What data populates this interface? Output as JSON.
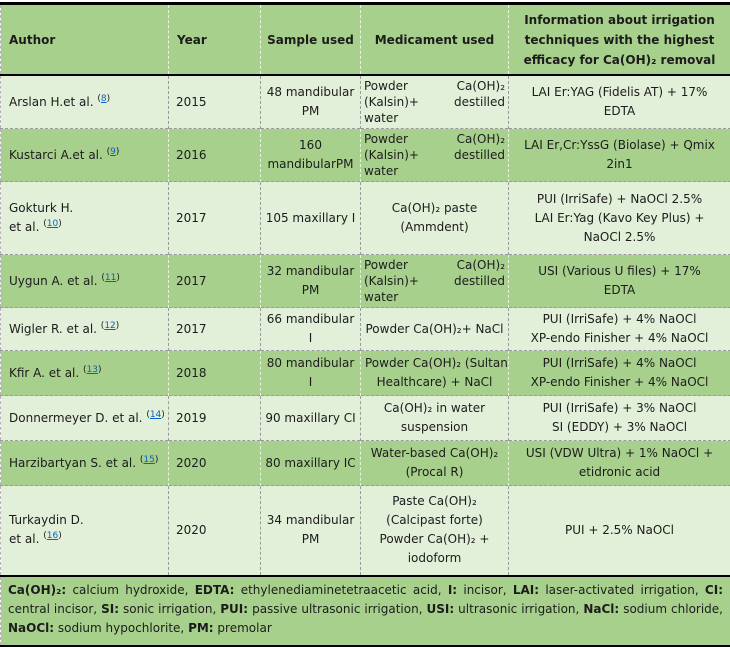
{
  "table": {
    "headers": [
      "Author",
      "Year",
      "Sample used",
      "Medicament used",
      "Information about irrigation techniques with the highest efficacy for Ca(OH)₂ removal"
    ],
    "rows": [
      {
        "shade": "light",
        "author_lines": [
          "Arslan H.et al."
        ],
        "ref": "8",
        "year": "2015",
        "sample_lines": [
          "48 mandibular",
          "PM"
        ],
        "medicament": {
          "align": "justify",
          "lines": [
            [
              "Powder",
              "Ca(OH)₂"
            ],
            [
              "(Kalsin)+",
              "destilled"
            ],
            [
              "water"
            ]
          ]
        },
        "info_lines": [
          "LAI Er:YAG (Fidelis AT) + 17%",
          "EDTA"
        ]
      },
      {
        "shade": "dark",
        "author_lines": [
          "Kustarci A.et al."
        ],
        "ref": "9",
        "year": "2016",
        "sample_lines": [
          "160",
          "mandibularPM"
        ],
        "medicament": {
          "align": "justify",
          "lines": [
            [
              "Powder",
              "Ca(OH)₂"
            ],
            [
              "(Kalsin)+",
              "destilled"
            ],
            [
              "water"
            ]
          ]
        },
        "info_lines": [
          "LAI Er,Cr:YssG (Biolase) + Qmix",
          "2in1"
        ]
      },
      {
        "shade": "light",
        "author_lines": [
          "Gokturk H.",
          "et al."
        ],
        "ref": "10",
        "year": "2017",
        "sample_lines": [
          "105 maxillary I"
        ],
        "medicament": {
          "align": "center",
          "lines": [
            "Ca(OH)₂ paste",
            "(Ammdent)"
          ]
        },
        "info_lines": [
          "PUI (IrriSafe) + NaOCl 2.5%",
          "LAI Er:Yag (Kavo Key Plus) +",
          "NaOCl 2.5%"
        ]
      },
      {
        "shade": "dark",
        "author_lines": [
          "Uygun A. et al."
        ],
        "ref": "11",
        "year": "2017",
        "sample_lines": [
          "32 mandibular",
          "PM"
        ],
        "medicament": {
          "align": "justify",
          "lines": [
            [
              "Powder",
              "Ca(OH)₂"
            ],
            [
              "(Kalsin)+",
              "destilled"
            ],
            [
              "water"
            ]
          ]
        },
        "info_lines": [
          "USI (Various U files) + 17%",
          "EDTA"
        ]
      },
      {
        "shade": "light",
        "author_lines": [
          "Wigler R. et al."
        ],
        "ref": "12",
        "year": "2017",
        "sample_lines": [
          "66 mandibular",
          "I"
        ],
        "medicament": {
          "align": "center",
          "lines": [
            "Powder Ca(OH)₂+ NaCl"
          ]
        },
        "info_lines": [
          "PUI (IrriSafe) + 4% NaOCl",
          "XP-endo Finisher + 4% NaOCl"
        ]
      },
      {
        "shade": "dark",
        "author_lines": [
          "Kfir A. et al."
        ],
        "ref": "13",
        "year": "2018",
        "sample_lines": [
          "80 mandibular",
          "I"
        ],
        "medicament": {
          "align": "center",
          "lines": [
            "Powder Ca(OH)₂ (Sultan",
            "Healthcare) + NaCl"
          ]
        },
        "info_lines": [
          "PUI (IrriSafe) + 4% NaOCl",
          "XP-endo Finisher + 4% NaOCl"
        ]
      },
      {
        "shade": "light",
        "author_lines": [
          "Donnermeyer D. et al."
        ],
        "ref": "14",
        "year": "2019",
        "sample_lines": [
          "90 maxillary CI"
        ],
        "medicament": {
          "align": "center",
          "lines": [
            "Ca(OH)₂ in water",
            "suspension"
          ]
        },
        "info_lines": [
          "PUI (IrriSafe) + 3% NaOCl",
          "SI (EDDY) + 3% NaOCl"
        ]
      },
      {
        "shade": "dark",
        "author_lines": [
          "Harzibartyan S. et al."
        ],
        "ref": "15",
        "year": "2020",
        "sample_lines": [
          "80 maxillary IC"
        ],
        "medicament": {
          "align": "center",
          "lines": [
            "Water-based Ca(OH)₂",
            "(Procal R)"
          ]
        },
        "info_lines": [
          "USI (VDW Ultra) + 1% NaOCl +",
          "etidronic acid"
        ]
      },
      {
        "shade": "light",
        "author_lines": [
          "Turkaydin D.",
          "et al."
        ],
        "ref": "16",
        "year": "2020",
        "sample_lines": [
          "34 mandibular",
          "PM"
        ],
        "medicament": {
          "align": "center",
          "lines": [
            "Paste Ca(OH)₂",
            "(Calcipast forte)",
            "Powder Ca(OH)₂ +",
            "iodoform"
          ]
        },
        "info_lines": [
          "PUI + 2.5% NaOCl"
        ]
      }
    ],
    "footnote": [
      {
        "term": "Ca(OH)₂",
        "desc": "calcium hydroxide"
      },
      {
        "term": "EDTA",
        "desc": "ethylenediaminetetraacetic acid"
      },
      {
        "term": "I",
        "desc": "incisor"
      },
      {
        "term": "LAI",
        "desc": "laser-activated irrigation"
      },
      {
        "term": "CI",
        "desc": "central incisor"
      },
      {
        "term": "SI",
        "desc": "sonic irrigation"
      },
      {
        "term": "PUI",
        "desc": "passive ultrasonic irrigation"
      },
      {
        "term": "USI",
        "desc": "ultrasonic irrigation"
      },
      {
        "term": "NaCl",
        "desc": "sodium chloride"
      },
      {
        "term": "NaOCl",
        "desc": "sodium hypochlorite"
      },
      {
        "term": "PM",
        "desc": "premolar"
      }
    ],
    "colors": {
      "header_green": "#A8D08D",
      "light_row_green": "#E2EFD9",
      "link_blue": "#0563C1",
      "border_black": "#000000"
    }
  }
}
